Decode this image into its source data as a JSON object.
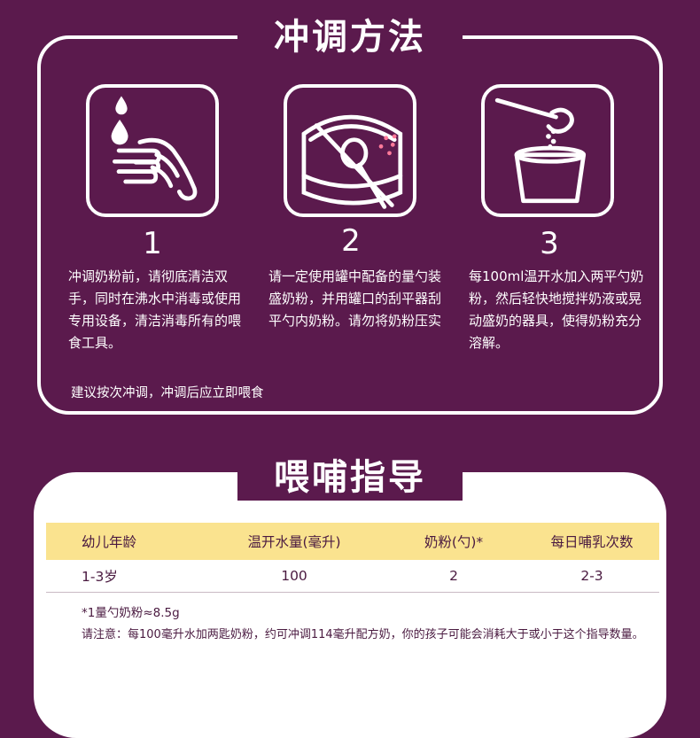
{
  "method": {
    "title": "冲调方法",
    "steps": [
      {
        "number": "1",
        "icon": "hand-washing-icon",
        "text": "冲调奶粉前，请彻底清洁双手，同时在沸水中消毒或使用专用设备，清洁消毒所有的喂食工具。"
      },
      {
        "number": "2",
        "icon": "scoop-leveling-icon",
        "text": "请一定使用罐中配备的量勺装盛奶粉，并用罐口的刮平器刮平勺内奶粉。请勿将奶粉压实"
      },
      {
        "number": "3",
        "icon": "pouring-powder-cup-icon",
        "text": "每100ml温开水加入两平勺奶粉，然后轻快地搅拌奶液或晃动盛奶的器具，使得奶粉充分溶解。"
      }
    ],
    "note": "建议按次冲调，冲调后应立即喂食"
  },
  "feeding": {
    "title": "喂哺指导",
    "headers": [
      "幼儿年龄",
      "温开水量(毫升)",
      "奶粉(勺)*",
      "每日哺乳次数"
    ],
    "rows": [
      [
        "1-3岁",
        "100",
        "2",
        "2-3"
      ]
    ],
    "footnote1": "*1量勺奶粉≈8.5g",
    "footnote2": "请注意：每100毫升水加两匙奶粉，约可冲调114毫升配方奶，你的孩子可能会消耗大于或小于这个指导数量。"
  },
  "colors": {
    "background": "#5b1a4d",
    "header_yellow": "#fae38f",
    "accent_pink": "#ff7a9a"
  }
}
